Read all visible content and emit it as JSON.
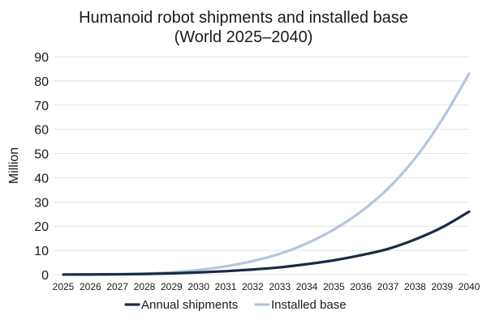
{
  "chart_data": {
    "type": "line",
    "title": "Humanoid robot shipments and installed base",
    "subtitle": "(World 2025–2040)",
    "xlabel": "",
    "ylabel": "Million",
    "ylim": [
      0,
      90
    ],
    "yticks": [
      0,
      10,
      20,
      30,
      40,
      50,
      60,
      70,
      80,
      90
    ],
    "grid": true,
    "legend_position": "bottom",
    "x": [
      "2025",
      "2026",
      "2027",
      "2028",
      "2029",
      "2030",
      "2031",
      "2032",
      "2033",
      "2034",
      "2035",
      "2036",
      "2037",
      "2038",
      "2039",
      "2040"
    ],
    "series": [
      {
        "name": "Annual shipments",
        "color": "#1b2a47",
        "values": [
          0.02,
          0.05,
          0.1,
          0.25,
          0.5,
          0.9,
          1.4,
          2.1,
          3.0,
          4.3,
          5.9,
          8.0,
          10.6,
          14.5,
          19.5,
          26.0
        ]
      },
      {
        "name": "Installed base",
        "color": "#b4c6e0",
        "values": [
          0.02,
          0.08,
          0.2,
          0.45,
          0.95,
          1.9,
          3.4,
          5.6,
          8.6,
          12.9,
          18.6,
          26.0,
          35.5,
          48.0,
          64.0,
          83.0
        ]
      }
    ]
  }
}
